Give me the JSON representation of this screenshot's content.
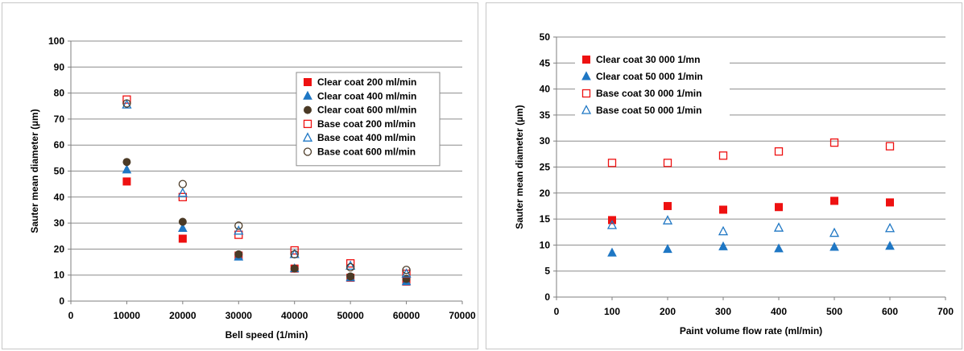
{
  "chart_data": [
    {
      "type": "scatter",
      "xlabel": "Bell speed (1/min)",
      "ylabel": "Sauter mean diameter (µm)",
      "xlim": [
        0,
        70000
      ],
      "ylim": [
        0,
        100
      ],
      "xticks": [
        0,
        10000,
        20000,
        30000,
        40000,
        50000,
        60000,
        70000
      ],
      "yticks": [
        0,
        10,
        20,
        30,
        40,
        50,
        60,
        70,
        80,
        90,
        100
      ],
      "grid": "horizontal",
      "legend_position": "right",
      "x": [
        10000,
        20000,
        30000,
        40000,
        50000,
        60000
      ],
      "series": [
        {
          "name": "Clear coat 200 ml/min",
          "marker": "square",
          "filled": true,
          "color": "#ee1111",
          "values": [
            46,
            24,
            17.5,
            12.5,
            9,
            7.5
          ]
        },
        {
          "name": "Clear coat 400 ml/min",
          "marker": "triangle",
          "filled": true,
          "color": "#1f77c4",
          "values": [
            50.5,
            28,
            17,
            12.5,
            9,
            7.5
          ]
        },
        {
          "name": "Clear coat 600 ml/min",
          "marker": "circle",
          "filled": true,
          "color": "#4b3a26",
          "values": [
            53.5,
            30.5,
            18,
            12.5,
            9.5,
            8.5
          ]
        },
        {
          "name": "Base coat 200 ml/min",
          "marker": "square",
          "filled": false,
          "color": "#ee1111",
          "values": [
            77.5,
            40,
            25.5,
            19.5,
            14.5,
            10.5
          ]
        },
        {
          "name": "Base coat 400 ml/min",
          "marker": "triangle",
          "filled": false,
          "color": "#1f77c4",
          "values": [
            75.5,
            41.5,
            27,
            18,
            13.5,
            10.5
          ]
        },
        {
          "name": "Base coat 600 ml/min",
          "marker": "circle",
          "filled": false,
          "color": "#4b3a26",
          "values": [
            76,
            45,
            29,
            18,
            13,
            12
          ]
        }
      ]
    },
    {
      "type": "scatter",
      "xlabel": "Paint volume flow rate (ml/min)",
      "ylabel": "Sauter mean diameter (µm)",
      "xlim": [
        0,
        700
      ],
      "ylim": [
        0,
        50
      ],
      "xticks": [
        0,
        100,
        200,
        300,
        400,
        500,
        600,
        700
      ],
      "yticks": [
        0,
        5,
        10,
        15,
        20,
        25,
        30,
        35,
        40,
        45,
        50
      ],
      "grid": "horizontal",
      "legend_position": "top-left",
      "x": [
        100,
        200,
        300,
        400,
        500,
        600
      ],
      "series": [
        {
          "name": "Clear coat 30 000 1/mn",
          "marker": "square",
          "filled": true,
          "color": "#ee1111",
          "values": [
            14.8,
            17.5,
            16.8,
            17.3,
            18.5,
            18.2
          ]
        },
        {
          "name": "Clear coat 50 000 1/min",
          "marker": "triangle",
          "filled": true,
          "color": "#1f77c4",
          "values": [
            8.5,
            9.2,
            9.7,
            9.3,
            9.6,
            9.8
          ]
        },
        {
          "name": "Base coat 30 000 1/min",
          "marker": "square",
          "filled": false,
          "color": "#ee1111",
          "values": [
            25.8,
            25.8,
            27.2,
            28,
            29.7,
            29
          ]
        },
        {
          "name": "Base coat 50 000 1/min",
          "marker": "triangle",
          "filled": false,
          "color": "#1f77c4",
          "values": [
            13.8,
            14.7,
            12.6,
            13.3,
            12.3,
            13.2
          ]
        }
      ]
    }
  ]
}
